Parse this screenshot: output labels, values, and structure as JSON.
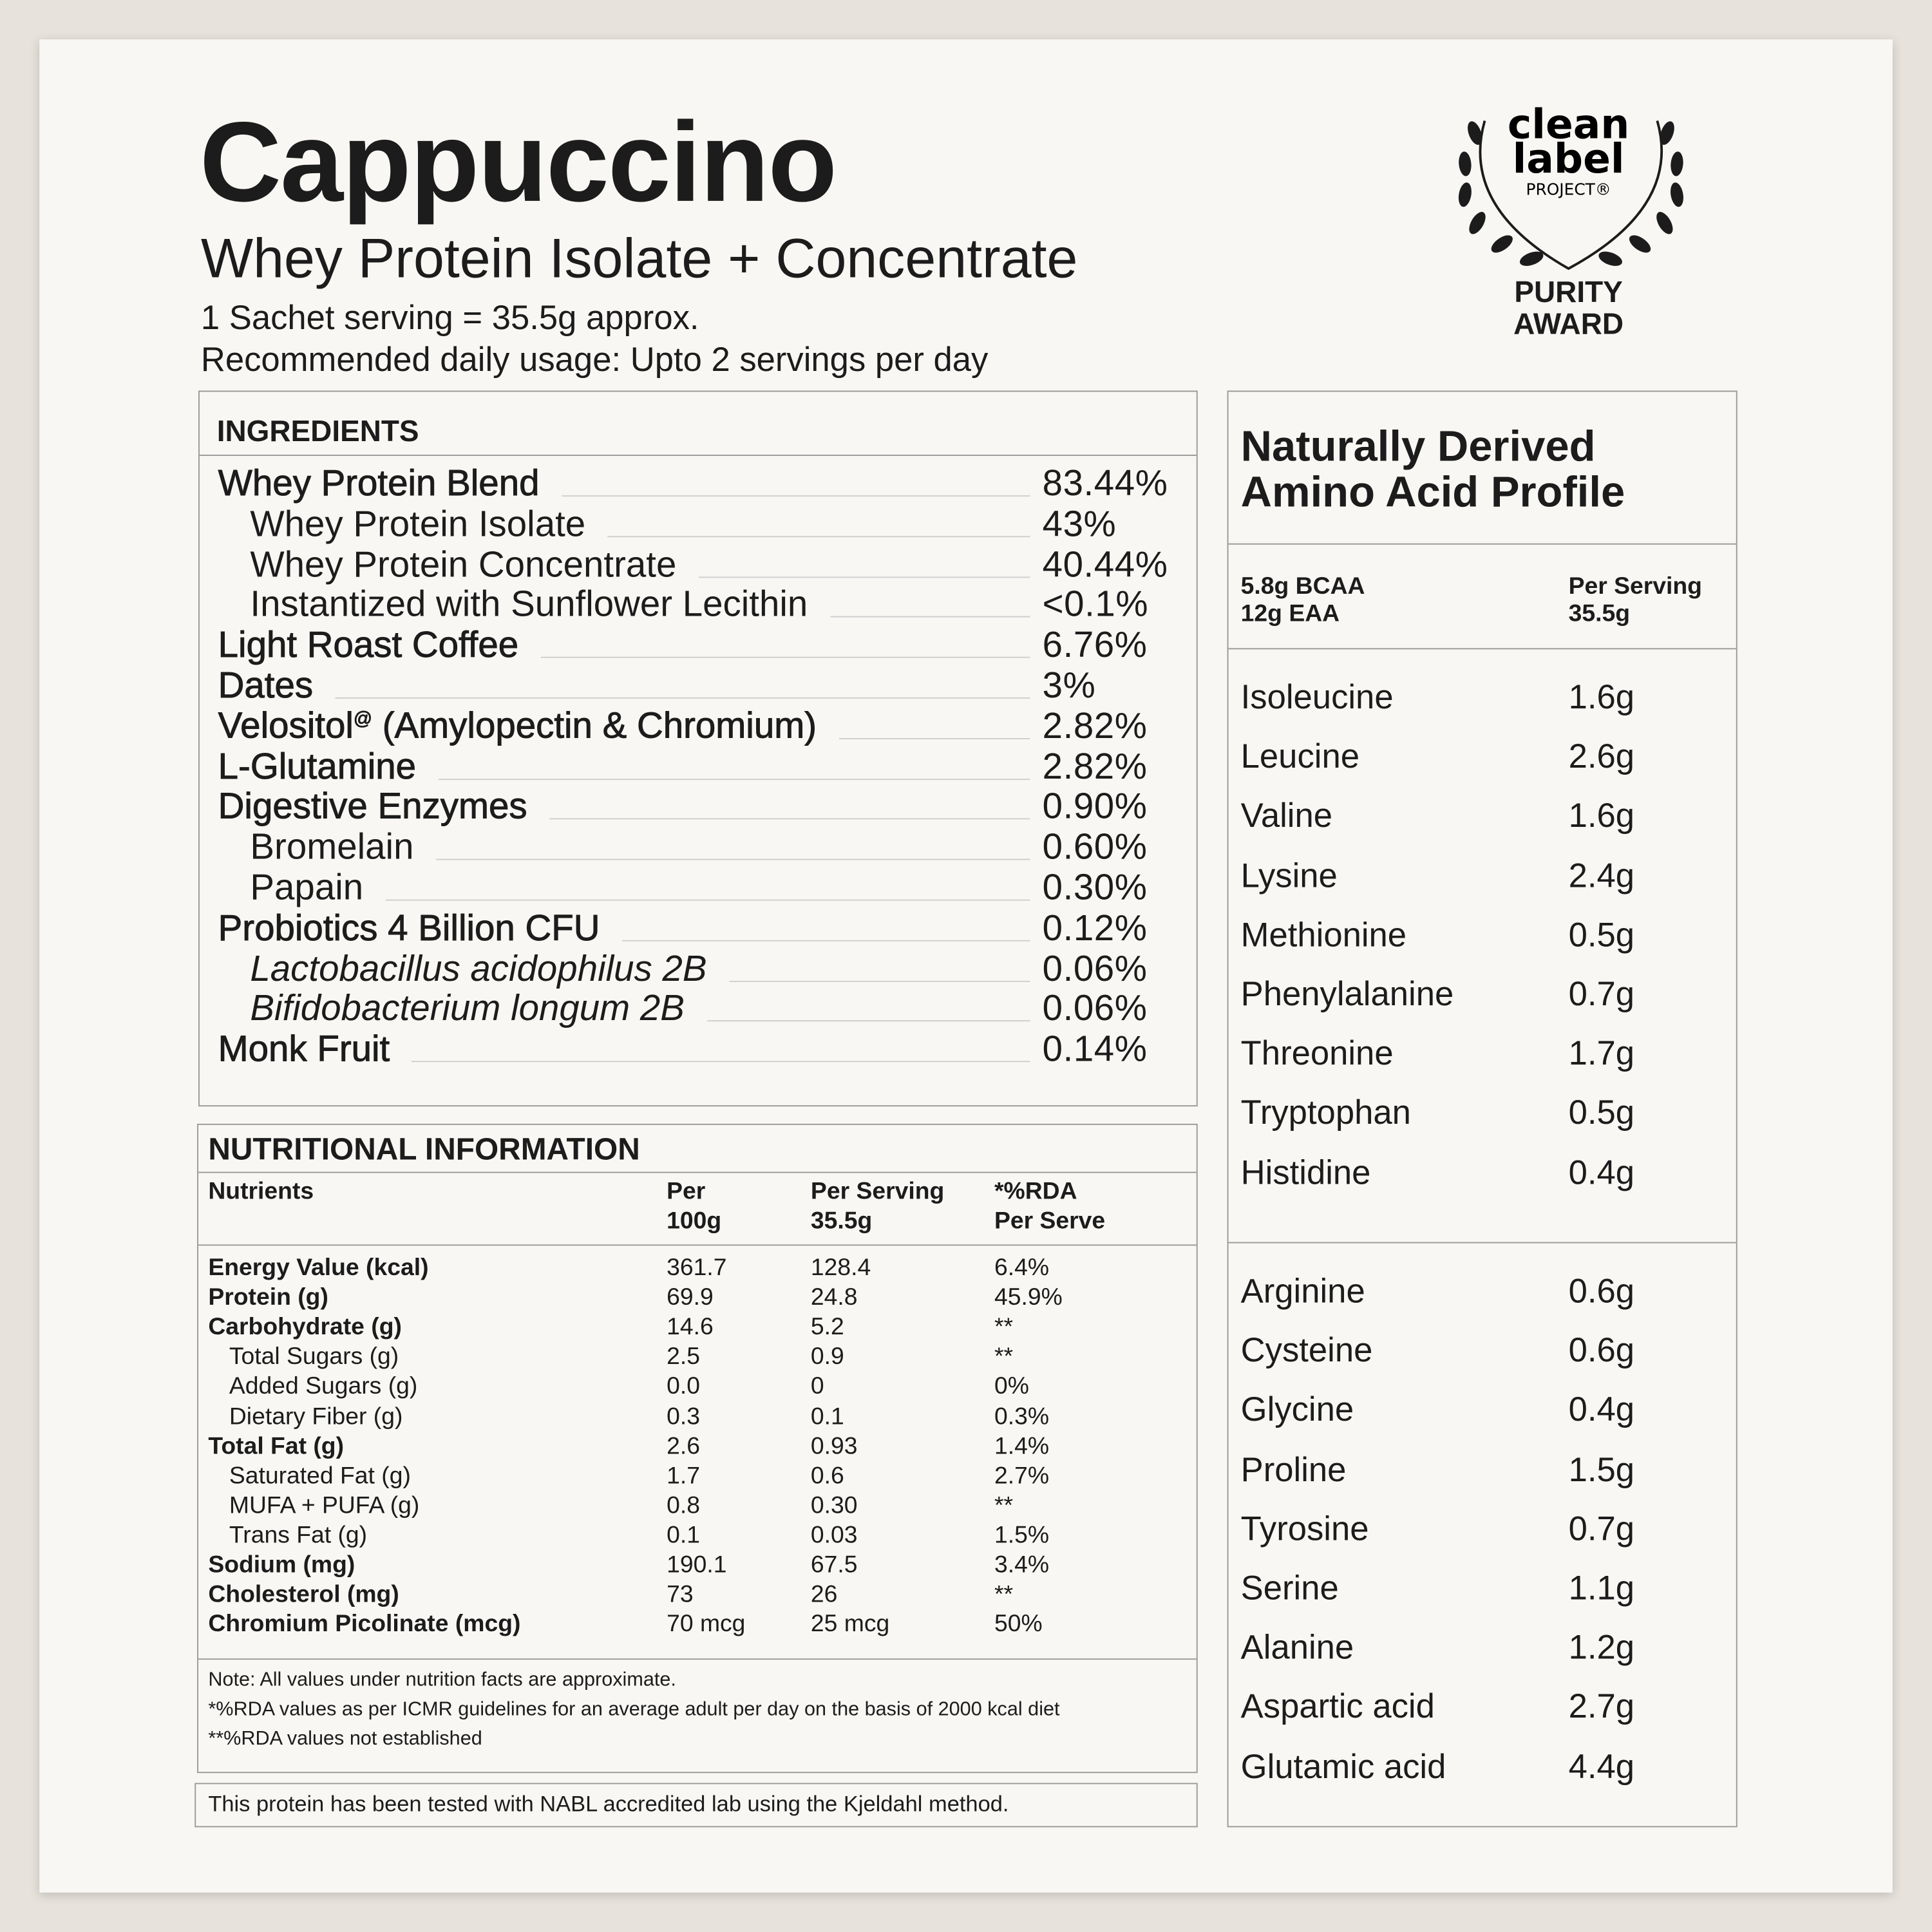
{
  "header": {
    "title": "Cappuccino",
    "subtitle": "Whey Protein Isolate + Concentrate",
    "serving": "1 Sachet serving = 35.5g approx.",
    "usage": "Recommended daily usage: Upto 2 servings per day"
  },
  "badge": {
    "word1": "clean",
    "word2": "label",
    "word3": "PROJECT®",
    "award1": "PURITY",
    "award2": "AWARD"
  },
  "ingredients": {
    "title": "INGREDIENTS",
    "rows": [
      {
        "name": "Whey Protein Blend",
        "value": "83.44%",
        "level": 0
      },
      {
        "name": "Whey Protein Isolate",
        "value": "43%",
        "level": 1
      },
      {
        "name": "Whey Protein Concentrate",
        "value": "40.44%",
        "level": 1
      },
      {
        "name": "Instantized with Sunflower Lecithin",
        "value": "<0.1%",
        "level": 1
      },
      {
        "name": "Light Roast Coffee",
        "value": "6.76%",
        "level": 0
      },
      {
        "name": "Dates",
        "value": "3%",
        "level": 0
      },
      {
        "name": "Velositol",
        "sup": "@",
        "rest": " (Amylopectin & Chromium)",
        "value": "2.82%",
        "level": 0
      },
      {
        "name": "L-Glutamine",
        "value": "2.82%",
        "level": 0
      },
      {
        "name": "Digestive Enzymes",
        "value": "0.90%",
        "level": 0
      },
      {
        "name": "Bromelain",
        "value": "0.60%",
        "level": 1
      },
      {
        "name": "Papain",
        "value": "0.30%",
        "level": 1
      },
      {
        "name": "Probiotics 4 Billion CFU",
        "value": "0.12%",
        "level": 0
      },
      {
        "name": "Lactobacillus acidophilus 2B",
        "value": "0.06%",
        "level": 1,
        "italic": true
      },
      {
        "name": "Bifidobacterium longum 2B",
        "value": "0.06%",
        "level": 1,
        "italic": true
      },
      {
        "name": "Monk Fruit",
        "value": "0.14%",
        "level": 0
      }
    ]
  },
  "nutrition": {
    "title": "NUTRITIONAL INFORMATION",
    "columns": [
      [
        "Nutrients"
      ],
      [
        "Per",
        "100g"
      ],
      [
        "Per Serving",
        "35.5g"
      ],
      [
        "*%RDA",
        "Per Serve"
      ]
    ],
    "rows": [
      {
        "cells": [
          "Energy Value (kcal)",
          "361.7",
          "128.4",
          "6.4%"
        ],
        "bold": true
      },
      {
        "cells": [
          "Protein (g)",
          "69.9",
          "24.8",
          "45.9%"
        ],
        "bold": true
      },
      {
        "cells": [
          "Carbohydrate (g)",
          "14.6",
          "5.2",
          "**"
        ],
        "bold": true
      },
      {
        "cells": [
          "Total Sugars (g)",
          "2.5",
          "0.9",
          "**"
        ],
        "sub": true
      },
      {
        "cells": [
          "Added Sugars (g)",
          "0.0",
          "0",
          "0%"
        ],
        "sub": true
      },
      {
        "cells": [
          "Dietary Fiber (g)",
          "0.3",
          "0.1",
          "0.3%"
        ],
        "sub": true
      },
      {
        "cells": [
          "Total Fat (g)",
          "2.6",
          "0.93",
          "1.4%"
        ],
        "bold": true
      },
      {
        "cells": [
          "Saturated Fat (g)",
          "1.7",
          "0.6",
          "2.7%"
        ],
        "sub": true
      },
      {
        "cells": [
          "MUFA + PUFA (g)",
          "0.8",
          "0.30",
          "**"
        ],
        "sub": true
      },
      {
        "cells": [
          "Trans Fat (g)",
          "0.1",
          "0.03",
          "1.5%"
        ],
        "sub": true
      },
      {
        "cells": [
          "Sodium (mg)",
          "190.1",
          "67.5",
          "3.4%"
        ],
        "bold": true
      },
      {
        "cells": [
          "Cholesterol (mg)",
          "73",
          "26",
          "**"
        ],
        "bold": true
      },
      {
        "cells": [
          "Chromium Picolinate (mcg)",
          "70 mcg",
          "25 mcg",
          "50%"
        ],
        "bold": true
      }
    ],
    "notes": [
      "Note: All values under nutrition facts are approximate.",
      "*%RDA values as per ICMR guidelines for an average adult per day on the basis of 2000 kcal diet",
      "**%RDA values not established"
    ]
  },
  "footer": "This protein has been tested with NABL accredited lab using the Kjeldahl method.",
  "amino": {
    "title": [
      "Naturally Derived",
      "Amino Acid Profile"
    ],
    "left_header": [
      "5.8g BCAA",
      "12g EAA"
    ],
    "right_header": [
      "Per Serving",
      "35.5g"
    ],
    "groups": [
      [
        [
          "Isoleucine",
          "1.6g"
        ],
        [
          "Leucine",
          "2.6g"
        ],
        [
          "Valine",
          "1.6g"
        ],
        [
          "Lysine",
          "2.4g"
        ],
        [
          "Methionine",
          "0.5g"
        ],
        [
          "Phenylalanine",
          "0.7g"
        ],
        [
          "Threonine",
          "1.7g"
        ],
        [
          "Tryptophan",
          "0.5g"
        ],
        [
          "Histidine",
          "0.4g"
        ]
      ],
      [
        [
          "Arginine",
          "0.6g"
        ],
        [
          "Cysteine",
          "0.6g"
        ],
        [
          "Glycine",
          "0.4g"
        ],
        [
          "Proline",
          "1.5g"
        ],
        [
          "Tyrosine",
          "0.7g"
        ],
        [
          "Serine",
          "1.1g"
        ],
        [
          "Alanine",
          "1.2g"
        ],
        [
          "Aspartic acid",
          "2.7g"
        ],
        [
          "Glutamic acid",
          "4.4g"
        ]
      ]
    ]
  }
}
